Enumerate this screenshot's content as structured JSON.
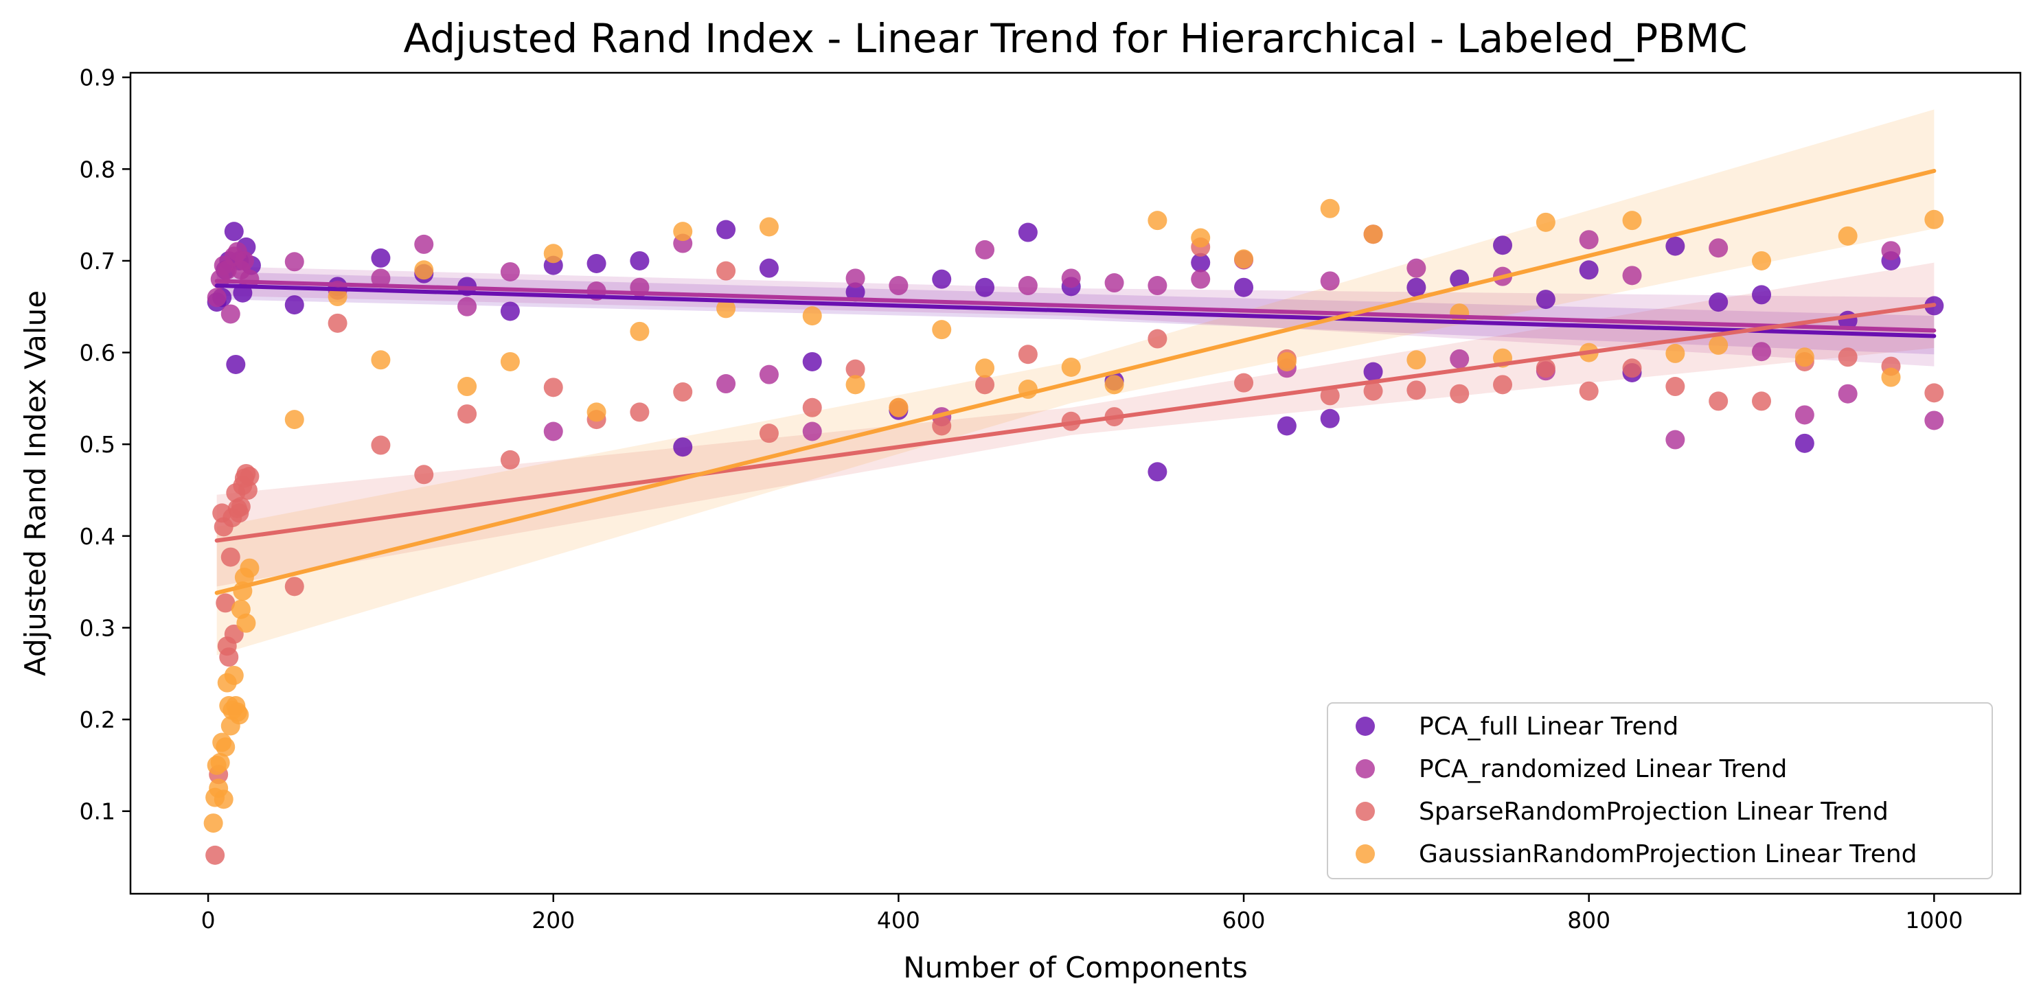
{
  "chart_data": {
    "type": "scatter",
    "title": "Adjusted Rand Index - Linear Trend for Hierarchical - Labeled_PBMC",
    "xlabel": "Number of Components",
    "ylabel": "Adjusted Rand Index Value",
    "xlim": [
      -45,
      1050
    ],
    "ylim": [
      0.01,
      0.905
    ],
    "xticks": [
      0,
      200,
      400,
      600,
      800,
      1000
    ],
    "yticks": [
      0.1,
      0.2,
      0.3,
      0.4,
      0.5,
      0.6,
      0.7,
      0.8,
      0.9
    ],
    "grid": false,
    "legend_position": "lower-right",
    "series": [
      {
        "name": "PCA_full Linear Trend",
        "color": "#6a0fb0",
        "trend": {
          "x": [
            5,
            1000
          ],
          "y": [
            0.673,
            0.618
          ]
        },
        "ci_band": {
          "x": [
            5,
            500,
            1000
          ],
          "lower": [
            0.658,
            0.636,
            0.598
          ],
          "upper": [
            0.688,
            0.664,
            0.64
          ]
        },
        "points": [
          [
            5,
            0.655
          ],
          [
            8,
            0.66
          ],
          [
            10,
            0.69
          ],
          [
            12,
            0.7
          ],
          [
            15,
            0.732
          ],
          [
            16,
            0.587
          ],
          [
            18,
            0.7
          ],
          [
            20,
            0.665
          ],
          [
            22,
            0.715
          ],
          [
            25,
            0.695
          ],
          [
            50,
            0.652
          ],
          [
            75,
            0.672
          ],
          [
            100,
            0.703
          ],
          [
            125,
            0.686
          ],
          [
            150,
            0.672
          ],
          [
            175,
            0.645
          ],
          [
            200,
            0.695
          ],
          [
            225,
            0.697
          ],
          [
            250,
            0.7
          ],
          [
            275,
            0.497
          ],
          [
            300,
            0.734
          ],
          [
            325,
            0.692
          ],
          [
            350,
            0.59
          ],
          [
            375,
            0.666
          ],
          [
            400,
            0.537
          ],
          [
            425,
            0.68
          ],
          [
            450,
            0.671
          ],
          [
            475,
            0.731
          ],
          [
            500,
            0.672
          ],
          [
            525,
            0.569
          ],
          [
            550,
            0.47
          ],
          [
            575,
            0.698
          ],
          [
            600,
            0.671
          ],
          [
            625,
            0.52
          ],
          [
            650,
            0.528
          ],
          [
            675,
            0.579
          ],
          [
            700,
            0.671
          ],
          [
            725,
            0.68
          ],
          [
            750,
            0.717
          ],
          [
            775,
            0.658
          ],
          [
            800,
            0.69
          ],
          [
            825,
            0.578
          ],
          [
            850,
            0.716
          ],
          [
            875,
            0.655
          ],
          [
            900,
            0.663
          ],
          [
            925,
            0.501
          ],
          [
            950,
            0.635
          ],
          [
            975,
            0.7
          ],
          [
            1000,
            0.651
          ]
        ]
      },
      {
        "name": "PCA_randomized Linear Trend",
        "color": "#b0359a",
        "trend": {
          "x": [
            5,
            1000
          ],
          "y": [
            0.678,
            0.624
          ]
        },
        "ci_band": {
          "x": [
            5,
            500,
            1000
          ],
          "lower": [
            0.662,
            0.64,
            0.585
          ],
          "upper": [
            0.694,
            0.67,
            0.66
          ]
        },
        "points": [
          [
            5,
            0.66
          ],
          [
            7,
            0.68
          ],
          [
            9,
            0.695
          ],
          [
            11,
            0.69
          ],
          [
            13,
            0.642
          ],
          [
            15,
            0.705
          ],
          [
            17,
            0.71
          ],
          [
            19,
            0.69
          ],
          [
            21,
            0.7
          ],
          [
            24,
            0.68
          ],
          [
            50,
            0.699
          ],
          [
            75,
            0.668
          ],
          [
            100,
            0.681
          ],
          [
            125,
            0.718
          ],
          [
            150,
            0.65
          ],
          [
            175,
            0.688
          ],
          [
            200,
            0.514
          ],
          [
            225,
            0.667
          ],
          [
            250,
            0.671
          ],
          [
            275,
            0.719
          ],
          [
            300,
            0.566
          ],
          [
            325,
            0.576
          ],
          [
            350,
            0.514
          ],
          [
            375,
            0.681
          ],
          [
            400,
            0.673
          ],
          [
            425,
            0.53
          ],
          [
            450,
            0.712
          ],
          [
            475,
            0.673
          ],
          [
            500,
            0.681
          ],
          [
            525,
            0.676
          ],
          [
            550,
            0.673
          ],
          [
            575,
            0.68
          ],
          [
            600,
            0.701
          ],
          [
            625,
            0.583
          ],
          [
            650,
            0.678
          ],
          [
            675,
            0.729
          ],
          [
            700,
            0.692
          ],
          [
            725,
            0.593
          ],
          [
            750,
            0.683
          ],
          [
            775,
            0.58
          ],
          [
            800,
            0.723
          ],
          [
            825,
            0.684
          ],
          [
            850,
            0.505
          ],
          [
            875,
            0.714
          ],
          [
            900,
            0.601
          ],
          [
            925,
            0.532
          ],
          [
            950,
            0.555
          ],
          [
            975,
            0.711
          ],
          [
            1000,
            0.526
          ]
        ]
      },
      {
        "name": "SparseRandomProjection Linear Trend",
        "color": "#e06666",
        "trend": {
          "x": [
            5,
            1000
          ],
          "y": [
            0.395,
            0.652
          ]
        },
        "ci_band": {
          "x": [
            5,
            500,
            1000
          ],
          "lower": [
            0.345,
            0.51,
            0.605
          ],
          "upper": [
            0.445,
            0.54,
            0.698
          ]
        },
        "points": [
          [
            4,
            0.052
          ],
          [
            6,
            0.14
          ],
          [
            8,
            0.425
          ],
          [
            9,
            0.41
          ],
          [
            10,
            0.327
          ],
          [
            11,
            0.28
          ],
          [
            12,
            0.268
          ],
          [
            13,
            0.377
          ],
          [
            14,
            0.42
          ],
          [
            15,
            0.293
          ],
          [
            16,
            0.447
          ],
          [
            17,
            0.43
          ],
          [
            18,
            0.425
          ],
          [
            19,
            0.432
          ],
          [
            20,
            0.455
          ],
          [
            21,
            0.463
          ],
          [
            22,
            0.468
          ],
          [
            23,
            0.45
          ],
          [
            24,
            0.465
          ],
          [
            50,
            0.345
          ],
          [
            75,
            0.632
          ],
          [
            100,
            0.499
          ],
          [
            125,
            0.467
          ],
          [
            150,
            0.533
          ],
          [
            175,
            0.483
          ],
          [
            200,
            0.562
          ],
          [
            225,
            0.527
          ],
          [
            250,
            0.535
          ],
          [
            275,
            0.557
          ],
          [
            300,
            0.689
          ],
          [
            325,
            0.512
          ],
          [
            350,
            0.54
          ],
          [
            375,
            0.582
          ],
          [
            400,
            0.54
          ],
          [
            425,
            0.52
          ],
          [
            450,
            0.565
          ],
          [
            475,
            0.598
          ],
          [
            500,
            0.525
          ],
          [
            525,
            0.53
          ],
          [
            550,
            0.615
          ],
          [
            575,
            0.715
          ],
          [
            600,
            0.567
          ],
          [
            625,
            0.593
          ],
          [
            650,
            0.553
          ],
          [
            675,
            0.558
          ],
          [
            700,
            0.559
          ],
          [
            725,
            0.555
          ],
          [
            750,
            0.565
          ],
          [
            775,
            0.583
          ],
          [
            800,
            0.558
          ],
          [
            825,
            0.583
          ],
          [
            850,
            0.563
          ],
          [
            875,
            0.547
          ],
          [
            900,
            0.547
          ],
          [
            925,
            0.59
          ],
          [
            950,
            0.595
          ],
          [
            975,
            0.585
          ],
          [
            1000,
            0.556
          ]
        ]
      },
      {
        "name": "GaussianRandomProjection Linear Trend",
        "color": "#fba238",
        "trend": {
          "x": [
            5,
            1000
          ],
          "y": [
            0.338,
            0.798
          ]
        },
        "ci_band": {
          "x": [
            5,
            500,
            1000
          ],
          "lower": [
            0.27,
            0.545,
            0.735
          ],
          "upper": [
            0.41,
            0.59,
            0.865
          ]
        },
        "points": [
          [
            3,
            0.087
          ],
          [
            4,
            0.115
          ],
          [
            5,
            0.15
          ],
          [
            6,
            0.125
          ],
          [
            7,
            0.153
          ],
          [
            8,
            0.175
          ],
          [
            9,
            0.113
          ],
          [
            10,
            0.17
          ],
          [
            11,
            0.24
          ],
          [
            12,
            0.215
          ],
          [
            13,
            0.193
          ],
          [
            14,
            0.21
          ],
          [
            15,
            0.248
          ],
          [
            16,
            0.215
          ],
          [
            17,
            0.208
          ],
          [
            18,
            0.205
          ],
          [
            19,
            0.32
          ],
          [
            20,
            0.34
          ],
          [
            21,
            0.355
          ],
          [
            22,
            0.305
          ],
          [
            24,
            0.365
          ],
          [
            50,
            0.527
          ],
          [
            75,
            0.661
          ],
          [
            100,
            0.592
          ],
          [
            125,
            0.69
          ],
          [
            150,
            0.563
          ],
          [
            175,
            0.59
          ],
          [
            200,
            0.708
          ],
          [
            225,
            0.535
          ],
          [
            250,
            0.623
          ],
          [
            275,
            0.732
          ],
          [
            300,
            0.648
          ],
          [
            325,
            0.737
          ],
          [
            350,
            0.64
          ],
          [
            375,
            0.565
          ],
          [
            400,
            0.54
          ],
          [
            425,
            0.625
          ],
          [
            450,
            0.583
          ],
          [
            475,
            0.56
          ],
          [
            500,
            0.584
          ],
          [
            525,
            0.565
          ],
          [
            550,
            0.744
          ],
          [
            575,
            0.725
          ],
          [
            600,
            0.702
          ],
          [
            625,
            0.59
          ],
          [
            650,
            0.757
          ],
          [
            675,
            0.729
          ],
          [
            700,
            0.592
          ],
          [
            725,
            0.643
          ],
          [
            750,
            0.594
          ],
          [
            775,
            0.742
          ],
          [
            800,
            0.6
          ],
          [
            825,
            0.744
          ],
          [
            850,
            0.599
          ],
          [
            875,
            0.608
          ],
          [
            900,
            0.7
          ],
          [
            925,
            0.595
          ],
          [
            950,
            0.727
          ],
          [
            975,
            0.573
          ],
          [
            1000,
            0.745
          ]
        ]
      }
    ]
  }
}
